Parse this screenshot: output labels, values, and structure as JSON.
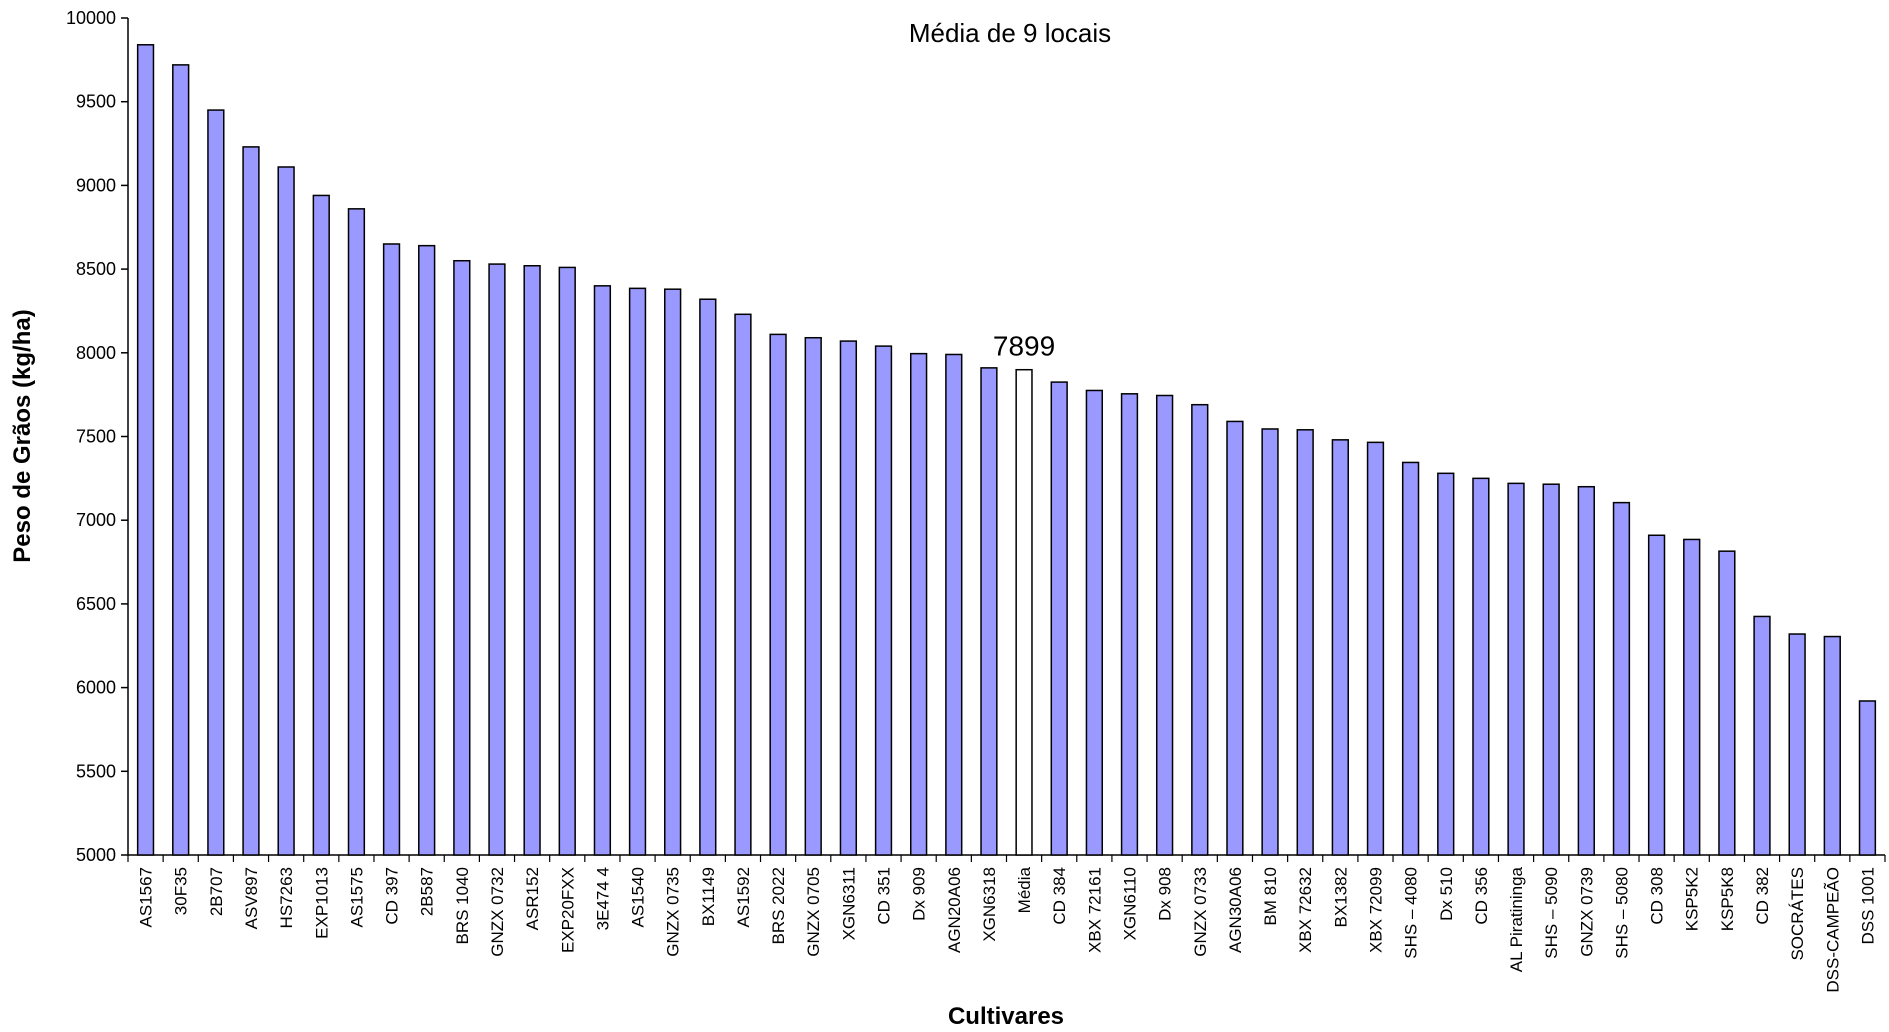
{
  "chart_data": {
    "type": "bar",
    "title": "Média de 9 locais",
    "xlabel": "Cultivares",
    "ylabel": "Peso de Grãos (kg/ha)",
    "ylim": [
      5000,
      10000
    ],
    "yticks": [
      5000,
      5500,
      6000,
      6500,
      7000,
      7500,
      8000,
      8500,
      9000,
      9500,
      10000
    ],
    "grid": false,
    "colors": {
      "bar": "#9999ff",
      "highlight": "#ffffff",
      "outline": "#000000"
    },
    "highlight_category": "Média",
    "annotation": {
      "category": "Média",
      "text": "7899"
    },
    "categories": [
      "AS1567",
      "30F35",
      "2B707",
      "ASV897",
      "HS7263",
      "EXP1013",
      "AS1575",
      "CD 397",
      "2B587",
      "BRS 1040",
      "GNZX 0732",
      "ASR152",
      "EXP20FXX",
      "3E474 4",
      "AS1540",
      "GNZX 0735",
      "BX1149",
      "AS1592",
      "BRS 2022",
      "GNZX 0705",
      "XGN6311",
      "CD 351",
      "Dx 909",
      "AGN20A06",
      "XGN6318",
      "Média",
      "CD 384",
      "XBX 72161",
      "XGN6110",
      "Dx 908",
      "GNZX 0733",
      "AGN30A06",
      "BM 810",
      "XBX 72632",
      "BX1382",
      "XBX 72099",
      "SHS – 4080",
      "Dx 510",
      "CD 356",
      "AL Piratininga",
      "SHS – 5090",
      "GNZX 0739",
      "SHS – 5080",
      "CD 308",
      "KSP5K2",
      "KSP5K8",
      "CD 382",
      "SOCRÁTES",
      "DSS-CAMPEÃO",
      "DSS 1001"
    ],
    "values": [
      9840,
      9720,
      9450,
      9230,
      9110,
      8940,
      8860,
      8650,
      8640,
      8550,
      8530,
      8520,
      8510,
      8400,
      8385,
      8380,
      8320,
      8230,
      8110,
      8090,
      8070,
      8040,
      7995,
      7990,
      7910,
      7899,
      7825,
      7775,
      7755,
      7745,
      7690,
      7590,
      7545,
      7540,
      7480,
      7465,
      7345,
      7280,
      7250,
      7220,
      7215,
      7200,
      7105,
      6910,
      6885,
      6815,
      6425,
      6320,
      6305,
      5920
    ]
  }
}
